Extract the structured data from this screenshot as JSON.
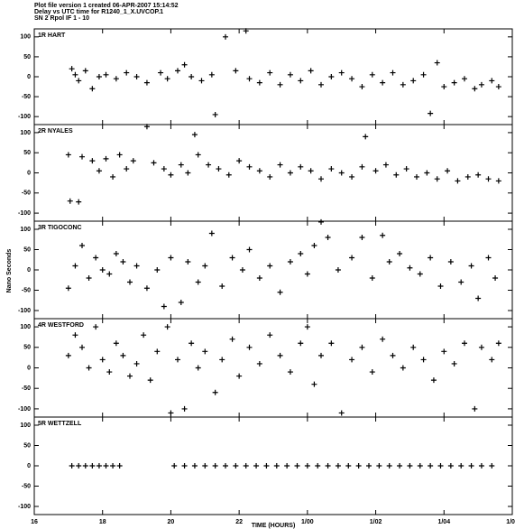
{
  "header": [
    "Plot file version 1  created 06-APR-2007 15:14:52",
    "Delay vs UTC time for R1240_1_X.UVCOP.1",
    "SN 2  Rpol  IF 1 - 10"
  ],
  "y_label": "Nano Seconds",
  "chart_data": [
    {
      "type": "scatter",
      "title": "1R HART",
      "color": "#000000",
      "ylim": [
        -120,
        120
      ],
      "yticks": [
        100,
        50,
        0,
        -50,
        -100
      ],
      "x": [
        17.1,
        17.2,
        17.3,
        17.5,
        17.7,
        17.9,
        18.1,
        18.4,
        18.7,
        19.0,
        19.3,
        19.7,
        19.9,
        20.2,
        20.4,
        20.6,
        20.9,
        21.2,
        21.3,
        21.6,
        21.9,
        22.2,
        22.3,
        22.6,
        22.9,
        23.2,
        23.5,
        23.8,
        24.1,
        24.4,
        24.7,
        25.0,
        25.3,
        25.6,
        25.9,
        26.2,
        26.5,
        26.8,
        27.1,
        27.4,
        27.6,
        27.8,
        28.0,
        28.3,
        28.6,
        28.9,
        29.1,
        29.4,
        29.6
      ],
      "values": [
        20,
        5,
        -10,
        15,
        -30,
        0,
        5,
        -5,
        10,
        0,
        -15,
        10,
        -5,
        15,
        30,
        0,
        -10,
        5,
        -95,
        100,
        15,
        115,
        -5,
        -15,
        10,
        -20,
        5,
        -10,
        15,
        -20,
        0,
        10,
        -5,
        -25,
        5,
        -15,
        10,
        -20,
        -10,
        5,
        -92,
        35,
        -25,
        -15,
        -5,
        -30,
        -20,
        -10,
        -25
      ]
    },
    {
      "type": "scatter",
      "title": "2R NYALES",
      "color": "#000000",
      "ylim": [
        -120,
        120
      ],
      "yticks": [
        100,
        50,
        0,
        -50,
        -100
      ],
      "x": [
        17.0,
        17.05,
        17.3,
        17.4,
        17.7,
        17.9,
        18.1,
        18.3,
        18.5,
        18.7,
        18.9,
        19.3,
        19.5,
        19.8,
        20.0,
        20.3,
        20.5,
        20.7,
        20.8,
        21.1,
        21.4,
        21.7,
        22.0,
        22.3,
        22.6,
        22.9,
        23.2,
        23.5,
        23.8,
        24.1,
        24.4,
        24.7,
        25.0,
        25.3,
        25.6,
        25.7,
        26.0,
        26.3,
        26.6,
        26.9,
        27.2,
        27.5,
        27.8,
        28.1,
        28.4,
        28.7,
        29.0,
        29.3,
        29.6
      ],
      "values": [
        45,
        -70,
        -72,
        40,
        30,
        5,
        35,
        -10,
        45,
        10,
        30,
        115,
        25,
        10,
        -5,
        20,
        0,
        95,
        45,
        20,
        10,
        -5,
        30,
        15,
        5,
        -10,
        20,
        0,
        15,
        5,
        -15,
        10,
        0,
        -10,
        15,
        90,
        5,
        20,
        -5,
        10,
        -10,
        0,
        -15,
        5,
        -20,
        -10,
        -5,
        -15,
        -20
      ]
    },
    {
      "type": "scatter",
      "title": "3R TIGOCONC",
      "color": "#000000",
      "ylim": [
        -120,
        120
      ],
      "yticks": [
        100,
        50,
        0,
        -50,
        -100
      ],
      "x": [
        17.0,
        17.2,
        17.4,
        17.6,
        17.8,
        18.0,
        18.2,
        18.4,
        18.6,
        18.8,
        19.0,
        19.3,
        19.6,
        19.8,
        20.0,
        20.3,
        20.5,
        20.8,
        21.0,
        21.2,
        21.5,
        21.8,
        22.1,
        22.3,
        22.6,
        22.9,
        23.2,
        23.5,
        23.8,
        24.0,
        24.2,
        24.4,
        24.6,
        24.9,
        25.3,
        25.6,
        25.9,
        26.2,
        26.4,
        26.7,
        27.0,
        27.3,
        27.6,
        27.9,
        28.2,
        28.5,
        28.8,
        29.0,
        29.3,
        29.5
      ],
      "values": [
        -45,
        10,
        60,
        -20,
        30,
        0,
        -10,
        40,
        20,
        -30,
        10,
        -45,
        0,
        -90,
        30,
        -80,
        20,
        -30,
        10,
        90,
        -40,
        30,
        0,
        50,
        -20,
        10,
        -55,
        20,
        40,
        -10,
        60,
        118,
        80,
        0,
        30,
        80,
        -20,
        85,
        20,
        40,
        5,
        -10,
        30,
        -40,
        20,
        -30,
        10,
        -70,
        30,
        -20
      ]
    },
    {
      "type": "scatter",
      "title": "4R WESTFORD",
      "color": "#000000",
      "ylim": [
        -120,
        120
      ],
      "yticks": [
        100,
        50,
        0,
        -50,
        -100
      ],
      "x": [
        17.0,
        17.2,
        17.4,
        17.6,
        17.8,
        18.0,
        18.2,
        18.4,
        18.6,
        18.8,
        19.0,
        19.2,
        19.4,
        19.6,
        19.9,
        20.0,
        20.2,
        20.4,
        20.6,
        20.8,
        21.0,
        21.3,
        21.5,
        21.8,
        22.0,
        22.3,
        22.6,
        22.9,
        23.2,
        23.5,
        23.8,
        24.0,
        24.2,
        24.4,
        24.7,
        25.0,
        25.3,
        25.6,
        25.9,
        26.2,
        26.5,
        26.8,
        27.1,
        27.4,
        27.7,
        28.0,
        28.3,
        28.6,
        28.9,
        29.1,
        29.4,
        29.6
      ],
      "values": [
        30,
        80,
        50,
        0,
        100,
        20,
        -10,
        60,
        30,
        -20,
        10,
        80,
        -30,
        40,
        100,
        -110,
        20,
        -100,
        60,
        0,
        40,
        -60,
        20,
        70,
        -20,
        50,
        10,
        80,
        30,
        -10,
        60,
        100,
        -40,
        30,
        60,
        -110,
        20,
        50,
        -10,
        70,
        30,
        0,
        50,
        20,
        -30,
        40,
        10,
        60,
        -100,
        50,
        20,
        60
      ]
    },
    {
      "type": "scatter",
      "title": "5R WETTZELL",
      "color": "#000000",
      "ylim": [
        -120,
        120
      ],
      "yticks": [
        100,
        50,
        0,
        -50,
        -100
      ],
      "xlim": [
        16,
        30
      ],
      "xticks": [
        16,
        18,
        20,
        22,
        {
          "value": 24,
          "label": "1/00"
        },
        {
          "value": 26,
          "label": "1/02"
        },
        {
          "value": 28,
          "label": "1/04"
        },
        {
          "value": 30,
          "label": "1/06"
        }
      ],
      "x_label": "TIME (HOURS)",
      "x": [
        17.1,
        17.3,
        17.5,
        17.7,
        17.9,
        18.1,
        18.3,
        18.5,
        20.1,
        20.4,
        20.7,
        21.0,
        21.3,
        21.6,
        21.9,
        22.2,
        22.5,
        22.8,
        23.1,
        23.4,
        23.7,
        24.0,
        24.3,
        24.6,
        24.9,
        25.2,
        25.5,
        25.8,
        26.1,
        26.4,
        26.7,
        27.0,
        27.3,
        27.6,
        27.9,
        28.2,
        28.5,
        28.8,
        29.1,
        29.4
      ],
      "values": [
        0,
        0,
        0,
        0,
        0,
        0,
        0,
        0,
        0,
        0,
        0,
        0,
        0,
        0,
        0,
        0,
        0,
        0,
        0,
        0,
        0,
        0,
        0,
        0,
        0,
        0,
        0,
        0,
        0,
        0,
        0,
        0,
        0,
        0,
        0,
        0,
        0,
        0,
        0,
        0
      ]
    }
  ]
}
